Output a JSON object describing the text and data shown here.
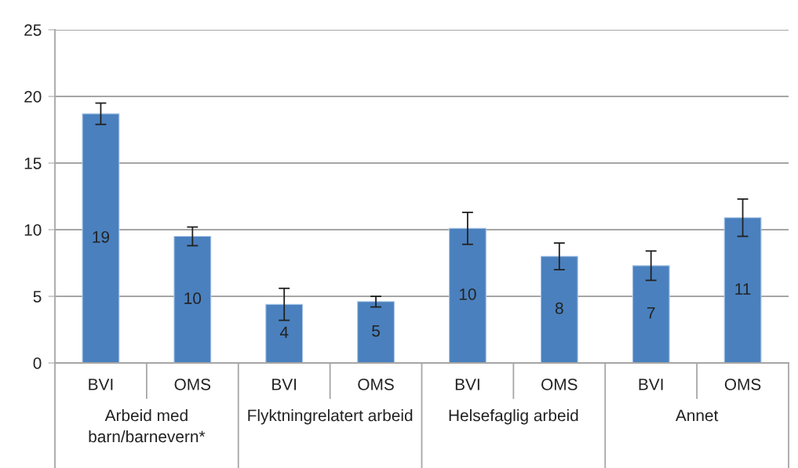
{
  "chart_data": {
    "type": "bar",
    "categories": [
      "BVI",
      "OMS",
      "BVI",
      "OMS",
      "BVI",
      "OMS",
      "BVI",
      "OMS"
    ],
    "annotations": [
      "Arbeid med barn/barnevern*",
      "Flyktningrelatert arbeid",
      "Helsefaglig arbeid",
      "Annet"
    ],
    "values": [
      18.7,
      9.5,
      4.4,
      4.6,
      10.1,
      8.0,
      7.3,
      10.9
    ],
    "errors": [
      0.8,
      0.7,
      1.2,
      0.4,
      1.2,
      1.0,
      1.1,
      1.4
    ],
    "value_labels": [
      "19",
      "10",
      "4",
      "5",
      "10",
      "8",
      "7",
      "11"
    ],
    "color": "#4a80be",
    "ylim": [
      0,
      25
    ],
    "yticks": [
      0,
      5,
      10,
      15,
      20,
      25
    ],
    "grid": "y",
    "legend": false
  }
}
